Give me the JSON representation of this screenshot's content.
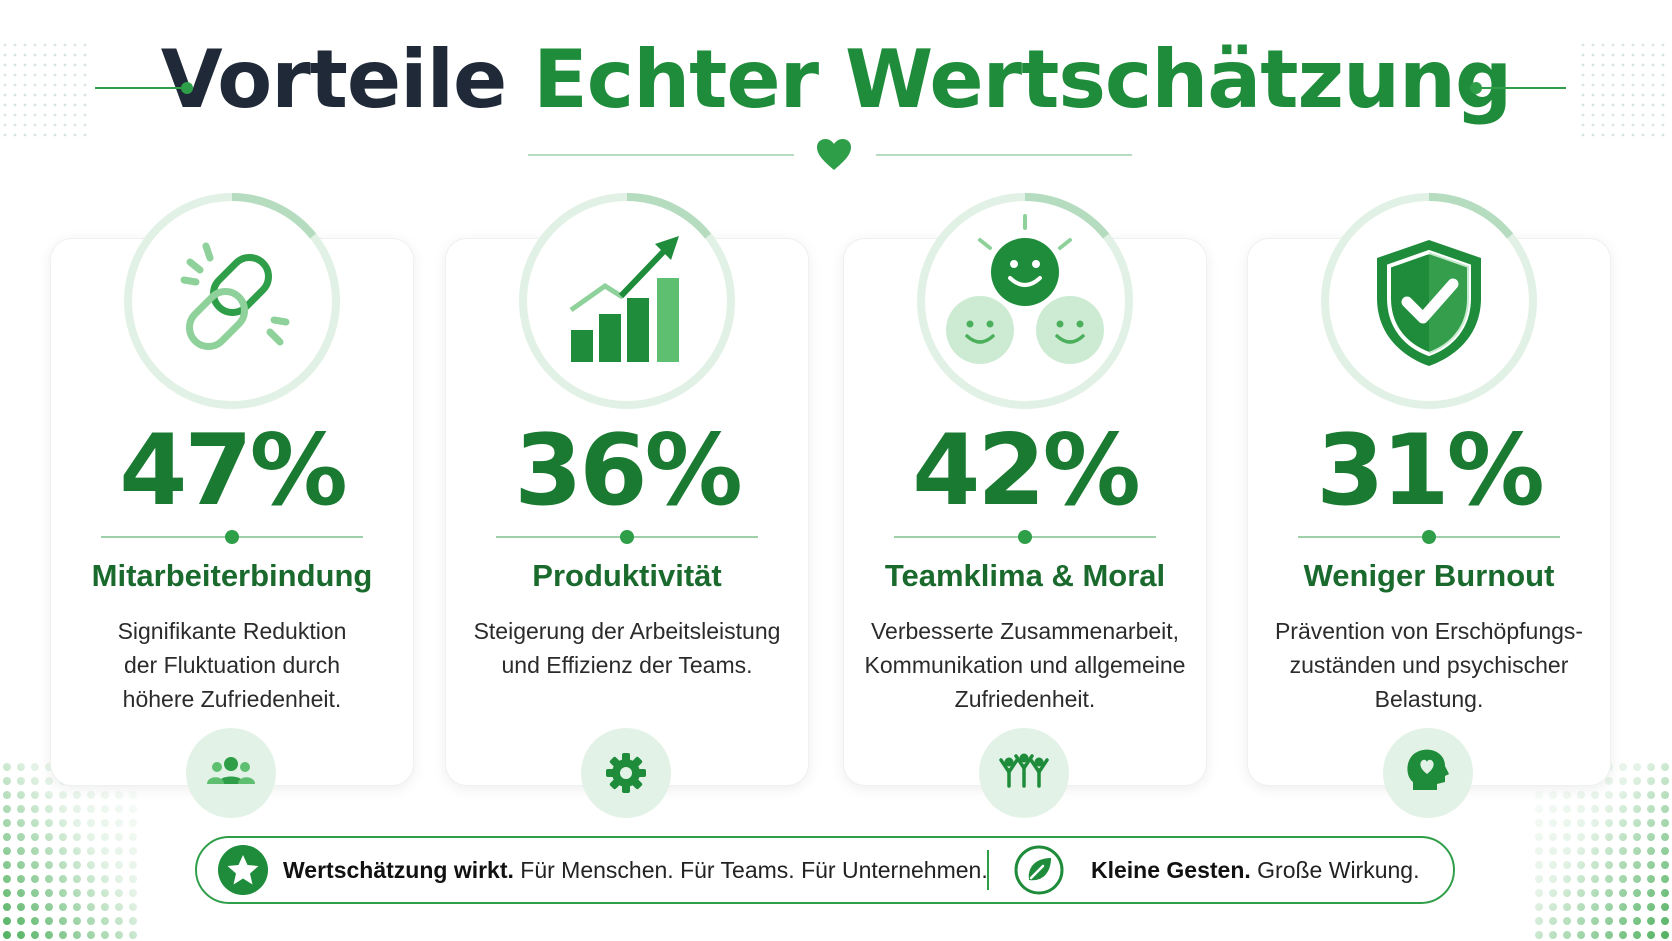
{
  "header": {
    "title_part1": "Vorteile",
    "title_part2": "Echter Wertschätzung"
  },
  "cards": [
    {
      "value": "47%",
      "title": "Mitarbeiterbindung",
      "description": "Signifikante Reduktion der Fluktuation durch höhere Zufriedenheit.",
      "main_icon": "chain-link-icon",
      "badge_icon": "people-group-icon"
    },
    {
      "value": "36%",
      "title": "Produktivität",
      "description": "Steigerung der Arbeitsleistung und Effizienz der Teams.",
      "main_icon": "growth-chart-icon",
      "badge_icon": "gear-icon"
    },
    {
      "value": "42%",
      "title": "Teamklima & Moral",
      "description": "Verbesserte Zusammenarbeit, Kommunikation und allgemeine Zufriedenheit.",
      "main_icon": "smiley-faces-icon",
      "badge_icon": "team-celebrating-icon"
    },
    {
      "value": "31%",
      "title": "Weniger Burnout",
      "description": "Prävention von Erschöpfungs-zuständen und psychischer Belastung.",
      "main_icon": "shield-check-icon",
      "badge_icon": "head-heart-icon"
    }
  ],
  "footer": {
    "left_bold": "Wertschätzung wirkt.",
    "left_text": " Für Menschen. Für Teams. Für Unternehmen.",
    "right_bold": "Kleine Gesten.",
    "right_text": " Große Wirkung.",
    "left_icon": "star-icon",
    "right_icon": "leaf-icon"
  },
  "colors": {
    "primary_green": "#1e8c3a",
    "dark_title": "#1f2937",
    "light_green": "#e3f2e6"
  }
}
